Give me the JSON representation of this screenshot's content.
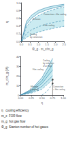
{
  "chart_data": [
    {
      "type": "line",
      "xlabel": "Φ_g · m_c/m_g",
      "ylabel": "η",
      "xlim": [
        0,
        2.5
      ],
      "ylim": [
        0,
        1.0
      ],
      "xticks": [
        {
          "value": 0,
          "label": "0.0"
        },
        0.5,
        {
          "value": 1.0,
          "label": "1.0"
        },
        1.5,
        {
          "value": 2.0,
          "label": "2.0"
        },
        2.5
      ],
      "yticks": [
        {
          "value": 0,
          "label": "0.0"
        },
        0.2,
        0.4,
        0.6,
        0.8,
        {
          "value": 1.0,
          "label": "1.0"
        }
      ],
      "grid": false,
      "series": [
        {
          "type": "line",
          "line_style": "solid",
          "color": "#2a7fa8",
          "x": [
            0,
            0.3,
            0.6,
            1.0,
            1.5,
            2.0,
            2.5
          ],
          "values": [
            0,
            0.52,
            0.68,
            0.8,
            0.88,
            0.93,
            0.96
          ]
        },
        {
          "type": "line",
          "line_style": "solid",
          "color": "#2a7fa8",
          "x": [
            0,
            0.3,
            0.6,
            1.0,
            1.5,
            2.0,
            2.5
          ],
          "values": [
            0,
            0.44,
            0.6,
            0.73,
            0.82,
            0.88,
            0.92
          ]
        },
        {
          "type": "line",
          "line_style": "dashed",
          "color": "#2a7fa8",
          "x": [
            0,
            0.3,
            0.6,
            1.0,
            1.5,
            2.0,
            2.5
          ],
          "values": [
            0,
            0.38,
            0.54,
            0.67,
            0.77,
            0.84,
            0.89
          ]
        },
        {
          "type": "line",
          "line_style": "dashed",
          "color": "#2a7fa8",
          "x": [
            0,
            0.3,
            0.6,
            1.0,
            1.5,
            2.0,
            2.5
          ],
          "values": [
            0,
            0.2,
            0.3,
            0.38,
            0.45,
            0.5,
            0.54
          ]
        },
        {
          "type": "line",
          "line_style": "dashed",
          "color": "#2a7fa8",
          "x": [
            0,
            0.3,
            0.6,
            1.0,
            1.5,
            2.0,
            2.5
          ],
          "values": [
            0,
            0.1,
            0.17,
            0.24,
            0.3,
            0.35,
            0.39
          ]
        }
      ],
      "bands": [
        {
          "color": "#a8dde8",
          "x": [
            0,
            0.3,
            0.6,
            1.0,
            1.5,
            2.0,
            2.5
          ],
          "upper": [
            0,
            0.52,
            0.68,
            0.8,
            0.88,
            0.93,
            0.96
          ],
          "lower": [
            0,
            0.44,
            0.6,
            0.73,
            0.82,
            0.88,
            0.92
          ]
        },
        {
          "color": "#a8dde8",
          "x": [
            0,
            0.3,
            0.6,
            1.0,
            1.5,
            2.0,
            2.5
          ],
          "upper": [
            0,
            0.38,
            0.54,
            0.67,
            0.77,
            0.84,
            0.89
          ],
          "lower": [
            0,
            0.2,
            0.3,
            0.38,
            0.45,
            0.5,
            0.54
          ]
        },
        {
          "color": "#a8dde8",
          "x": [
            0,
            0.3,
            0.6,
            1.0,
            1.5,
            2.0,
            2.5
          ],
          "upper": [
            0,
            0.2,
            0.3,
            0.38,
            0.45,
            0.5,
            0.54
          ],
          "lower": [
            0,
            0.1,
            0.17,
            0.24,
            0.3,
            0.35,
            0.39
          ]
        }
      ],
      "annotations": [
        {
          "text": "Convection + film cooling",
          "x": 1.3,
          "y": 0.7,
          "align": "left"
        },
        {
          "text": "Effusion",
          "x": 0.68,
          "y": 0.575,
          "align": "left"
        },
        {
          "text": "Film cooling",
          "x": 1.3,
          "y": 0.415,
          "align": "left"
        },
        {
          "text": "Cooling\nby convection",
          "x": 0.5,
          "y": 0.15,
          "align": "left"
        }
      ]
    },
    {
      "type": "line",
      "xlabel": "η",
      "ylabel": "m_c/m_g (%)",
      "xlim": [
        0,
        1.0
      ],
      "ylim": [
        0,
        40
      ],
      "xticks": [
        {
          "value": 0,
          "label": "0.00"
        },
        0.25,
        {
          "value": 0.5,
          "label": "0.50"
        },
        0.75,
        {
          "value": 1.0,
          "label": "1.00"
        }
      ],
      "yticks": [
        0,
        10,
        20,
        30,
        40
      ],
      "grid": false,
      "series": [
        {
          "type": "line",
          "line_style": "solid",
          "color": "#2a7fa8",
          "x": [
            0,
            0.25,
            0.5,
            0.75
          ],
          "values": [
            0,
            5,
            15,
            32
          ]
        },
        {
          "type": "line",
          "line_style": "solid",
          "color": "#2a7fa8",
          "x": [
            0,
            0.25,
            0.5,
            0.75
          ],
          "values": [
            0,
            3,
            9,
            20
          ]
        },
        {
          "type": "line",
          "line_style": "solid",
          "color": "#2a7fa8",
          "x": [
            0,
            0.25,
            0.5,
            0.75
          ],
          "values": [
            0,
            6,
            18,
            38
          ]
        },
        {
          "type": "line",
          "line_style": "solid",
          "color": "#2a7fa8",
          "x": [
            0,
            0.25,
            0.5,
            0.75
          ],
          "values": [
            0,
            4,
            12,
            26
          ]
        },
        {
          "type": "line",
          "line_style": "dashed",
          "color": "#2a7fa8",
          "x": [
            0,
            0.25,
            0.5,
            0.75
          ],
          "values": [
            0,
            2,
            6,
            16
          ]
        },
        {
          "type": "line",
          "line_style": "dashed",
          "color": "#2a7fa8",
          "x": [
            0.5,
            0.625,
            0.75
          ],
          "values": [
            0,
            4,
            12
          ]
        },
        {
          "type": "line",
          "line_style": "solid",
          "color": "#555555",
          "x": [
            0.75,
            0.75
          ],
          "values": [
            0,
            16
          ]
        },
        {
          "type": "scatter",
          "marker": "circle",
          "color": "#222222",
          "x": [
            0.75,
            0.75
          ],
          "values": [
            16,
            12
          ]
        }
      ],
      "bands": [
        {
          "color": "#a8dde8",
          "x": [
            0,
            0.25,
            0.5,
            0.75
          ],
          "upper": [
            0,
            5,
            15,
            32
          ],
          "lower": [
            0,
            3,
            9,
            20
          ]
        },
        {
          "color": "#a8dde8",
          "x": [
            0,
            0.25,
            0.5,
            0.75
          ],
          "upper": [
            0,
            6,
            18,
            38
          ],
          "lower": [
            0,
            4,
            12,
            26
          ]
        },
        {
          "color": "#a8dde8",
          "x": [
            0,
            0.25,
            0.5,
            0.75
          ],
          "upper": [
            0,
            3,
            9,
            20
          ],
          "lower": [
            0,
            2,
            6,
            16
          ]
        }
      ],
      "annotations": [
        {
          "text": "Film cooling",
          "x": 0.28,
          "y": 27,
          "align": "left"
        },
        {
          "text": "Cooling\nby reduction\nof air flow",
          "x": 0.52,
          "y": 33,
          "align": "left"
        },
        {
          "text": "Effusion\n(Landing)",
          "x": 0.32,
          "y": 7.5,
          "align": "center"
        },
        {
          "text": "Convection\n+ film cooling",
          "x": 0.76,
          "y": 7.5,
          "align": "left"
        }
      ]
    },
    {
      "type": "text",
      "annotations": [
        "η   cooling efficiency",
        "m_c  FOR flow",
        "m_g  hot gas flow",
        "Φ_g  Stanton number of hot gases"
      ]
    }
  ]
}
